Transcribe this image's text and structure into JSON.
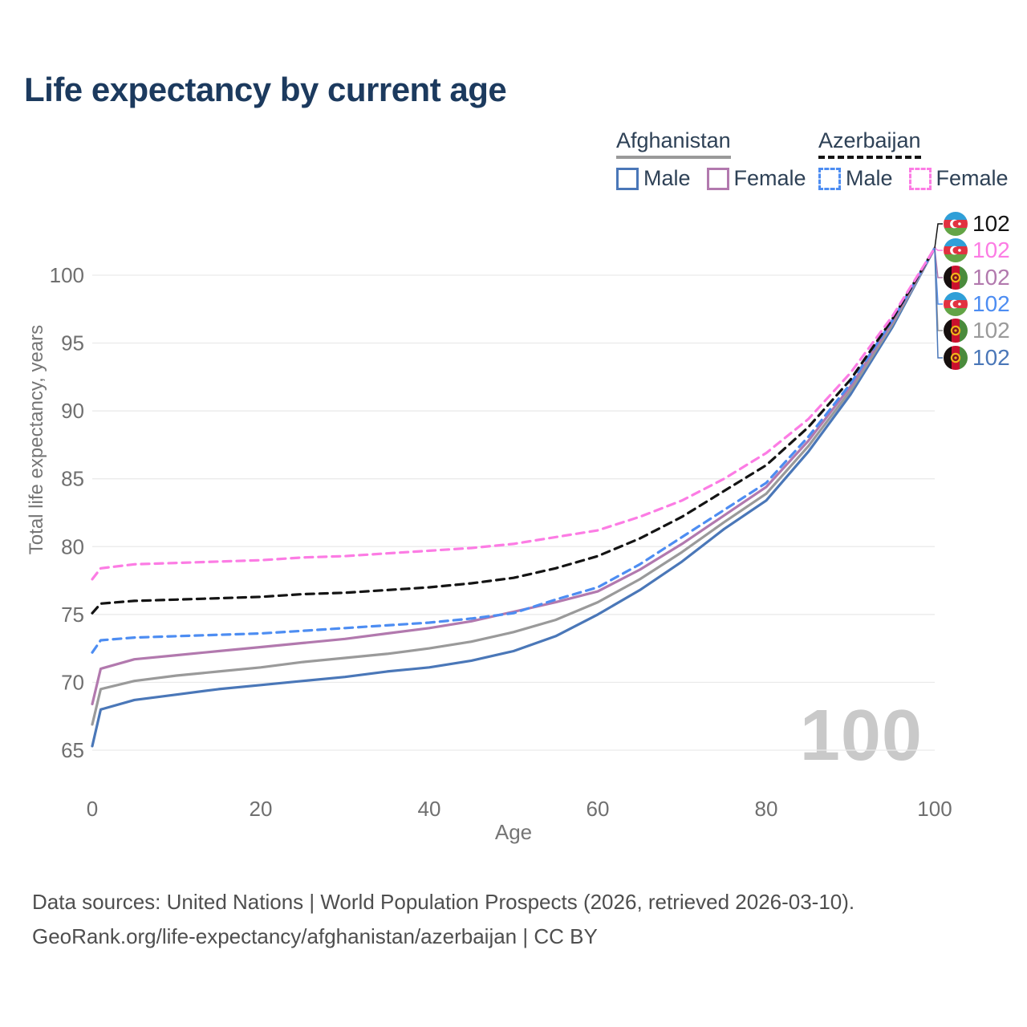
{
  "header": {
    "title": "Life expectancy by current age"
  },
  "legend": {
    "afghanistan": {
      "label": "Afghanistan",
      "male_label": "Male",
      "female_label": "Female",
      "male_color": "#4a77b8",
      "female_color": "#b279ae",
      "underline_color": "#9a9a9a",
      "line_style": "solid"
    },
    "azerbaijan": {
      "label": "Azerbaijan",
      "male_label": "Male",
      "female_label": "Female",
      "male_color": "#4d8df2",
      "female_color": "#fc7ce4",
      "underline_color": "#141414",
      "line_style": "dashed"
    }
  },
  "chart_data": {
    "type": "line",
    "title": "Life expectancy by current age",
    "xlabel": "Age",
    "ylabel": "Total life expectancy, years",
    "watermark": "100",
    "grid": true,
    "legend_position": "top-right",
    "xlim": [
      0,
      100
    ],
    "ylim": [
      65,
      102
    ],
    "xticks": [
      0,
      20,
      40,
      60,
      80,
      100
    ],
    "yticks": [
      65,
      70,
      75,
      80,
      85,
      90,
      95,
      100
    ],
    "ages": [
      0,
      1,
      5,
      10,
      15,
      20,
      25,
      30,
      35,
      40,
      45,
      50,
      55,
      60,
      65,
      70,
      75,
      80,
      85,
      90,
      95,
      100
    ],
    "series": [
      {
        "id": "afghanistan-male",
        "name": "Afghanistan Male",
        "country": "Afghanistan",
        "sex": "Male",
        "color": "#4a77b8",
        "dashed": false,
        "values": [
          65.3,
          68.0,
          68.7,
          69.1,
          69.5,
          69.8,
          70.1,
          70.4,
          70.8,
          71.1,
          71.6,
          72.3,
          73.4,
          75.0,
          76.8,
          78.9,
          81.3,
          83.4,
          87.0,
          91.2,
          96.2,
          102
        ]
      },
      {
        "id": "afghanistan-total",
        "name": "Afghanistan Both sexes",
        "country": "Afghanistan",
        "sex": "Both sexes",
        "color": "#9a9a9a",
        "dashed": false,
        "values": [
          66.9,
          69.5,
          70.1,
          70.5,
          70.8,
          71.1,
          71.5,
          71.8,
          72.1,
          72.5,
          73.0,
          73.7,
          74.6,
          75.9,
          77.6,
          79.6,
          81.8,
          83.9,
          87.4,
          91.5,
          96.4,
          102
        ]
      },
      {
        "id": "afghanistan-female",
        "name": "Afghanistan Female",
        "country": "Afghanistan",
        "sex": "Female",
        "color": "#b279ae",
        "dashed": false,
        "values": [
          68.4,
          71.0,
          71.7,
          72.0,
          72.3,
          72.6,
          72.9,
          73.2,
          73.6,
          74.0,
          74.5,
          75.2,
          75.9,
          76.7,
          78.3,
          80.2,
          82.3,
          84.4,
          87.8,
          91.8,
          96.6,
          102
        ]
      },
      {
        "id": "azerbaijan-male",
        "name": "Azerbaijan Male",
        "country": "Azerbaijan",
        "sex": "Male",
        "color": "#4d8df2",
        "dashed": true,
        "values": [
          72.2,
          73.1,
          73.3,
          73.4,
          73.5,
          73.6,
          73.8,
          74.0,
          74.2,
          74.4,
          74.7,
          75.1,
          76.1,
          77.0,
          78.7,
          80.7,
          82.7,
          84.7,
          88.1,
          92.0,
          96.7,
          102
        ]
      },
      {
        "id": "azerbaijan-total",
        "name": "Azerbaijan Both sexes",
        "country": "Azerbaijan",
        "sex": "Both sexes",
        "color": "#141414",
        "dashed": true,
        "values": [
          75.1,
          75.8,
          76.0,
          76.1,
          76.2,
          76.3,
          76.5,
          76.6,
          76.8,
          77.0,
          77.3,
          77.7,
          78.4,
          79.3,
          80.6,
          82.2,
          84.1,
          86.0,
          88.8,
          92.3,
          96.8,
          102
        ]
      },
      {
        "id": "azerbaijan-female",
        "name": "Azerbaijan Female",
        "country": "Azerbaijan",
        "sex": "Female",
        "color": "#fc7ce4",
        "dashed": true,
        "values": [
          77.6,
          78.4,
          78.7,
          78.8,
          78.9,
          79.0,
          79.2,
          79.3,
          79.5,
          79.7,
          79.9,
          80.2,
          80.7,
          81.2,
          82.2,
          83.4,
          85.0,
          86.9,
          89.4,
          92.8,
          97.0,
          102
        ]
      }
    ],
    "end_labels": [
      {
        "flag": "azerbaijan",
        "series": "azerbaijan-total",
        "value": "102",
        "color": "#141414"
      },
      {
        "flag": "azerbaijan",
        "series": "azerbaijan-female",
        "value": "102",
        "color": "#fc7ce4"
      },
      {
        "flag": "afghanistan",
        "series": "afghanistan-female",
        "value": "102",
        "color": "#b279ae"
      },
      {
        "flag": "azerbaijan",
        "series": "azerbaijan-male",
        "value": "102",
        "color": "#4d8df2"
      },
      {
        "flag": "afghanistan",
        "series": "afghanistan-total",
        "value": "102",
        "color": "#9a9a9a"
      },
      {
        "flag": "afghanistan",
        "series": "afghanistan-male",
        "value": "102",
        "color": "#4a77b8"
      }
    ]
  },
  "footer": {
    "line1": "Data sources: United Nations | World Population Prospects (2026, retrieved 2026-03-10).",
    "line2": "GeoRank.org/life-expectancy/afghanistan/azerbaijan | CC BY"
  }
}
